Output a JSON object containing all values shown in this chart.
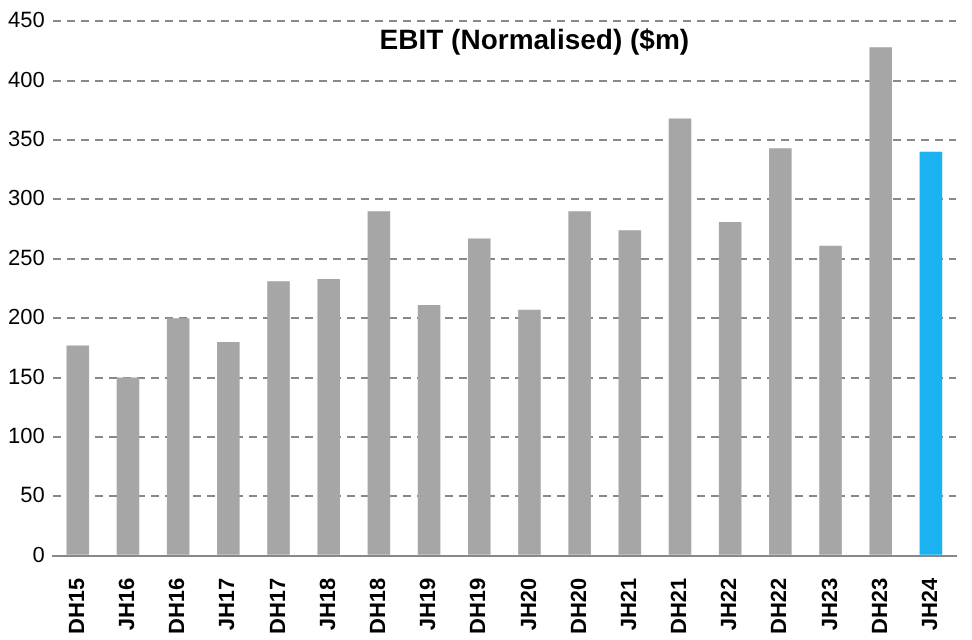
{
  "chart_data": {
    "type": "bar",
    "title": "EBIT (Normalised) ($m)",
    "categories": [
      "DH15",
      "JH16",
      "DH16",
      "JH17",
      "DH17",
      "JH18",
      "DH18",
      "JH19",
      "DH19",
      "JH20",
      "DH20",
      "JH21",
      "DH21",
      "JH22",
      "DH22",
      "JH23",
      "DH23",
      "JH24"
    ],
    "values": [
      177,
      150,
      200,
      180,
      231,
      233,
      290,
      211,
      267,
      207,
      290,
      274,
      368,
      281,
      343,
      261,
      428,
      340
    ],
    "colors": [
      "#a6a6a6",
      "#a6a6a6",
      "#a6a6a6",
      "#a6a6a6",
      "#a6a6a6",
      "#a6a6a6",
      "#a6a6a6",
      "#a6a6a6",
      "#a6a6a6",
      "#a6a6a6",
      "#a6a6a6",
      "#a6a6a6",
      "#a6a6a6",
      "#a6a6a6",
      "#a6a6a6",
      "#a6a6a6",
      "#a6a6a6",
      "#1ab2f0"
    ],
    "ylim": [
      0,
      450
    ],
    "yticks": [
      0,
      50,
      100,
      150,
      200,
      250,
      300,
      350,
      400,
      450
    ],
    "grid": "y",
    "legend": false
  }
}
